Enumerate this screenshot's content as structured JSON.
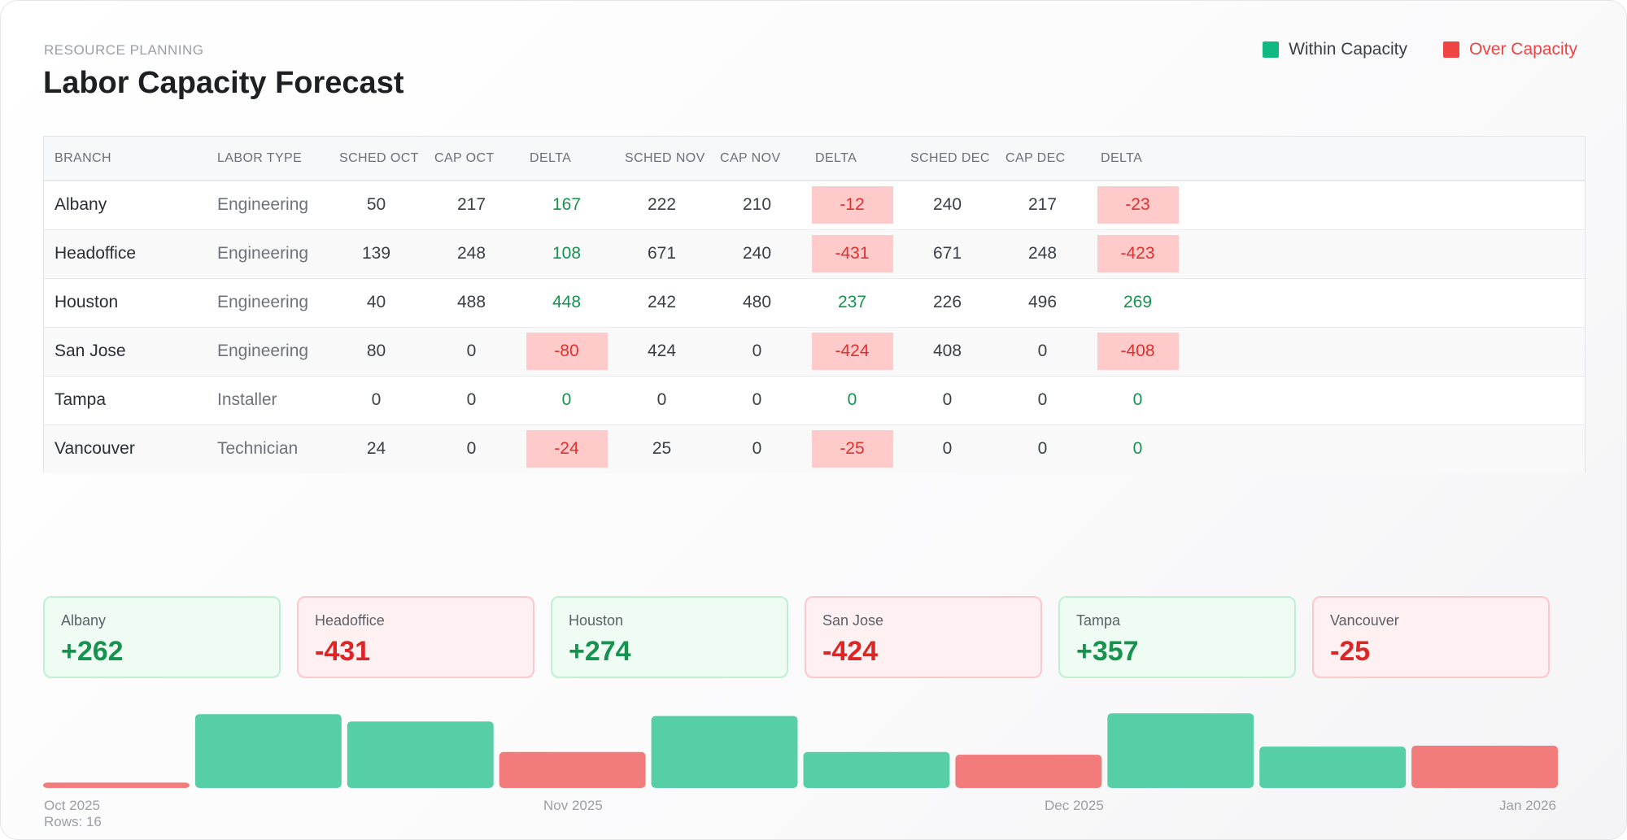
{
  "header": {
    "kicker": "RESOURCE PLANNING",
    "title": "Labor Capacity Forecast"
  },
  "legend": {
    "within": {
      "label": "Within Capacity",
      "color": "#10b981"
    },
    "over": {
      "label": "Over Capacity",
      "color": "#ef4444"
    }
  },
  "table": {
    "headers": [
      "BRANCH",
      "LABOR TYPE",
      "SCHED OCT",
      "CAP OCT",
      "DELTA",
      "SCHED NOV",
      "CAP NOV",
      "DELTA",
      "SCHED DEC",
      "CAP DEC",
      "DELTA"
    ],
    "rows": [
      [
        "Albany",
        "Engineering",
        "50",
        "217",
        "167",
        "222",
        "210",
        "-12",
        "240",
        "217",
        "-23"
      ],
      [
        "Headoffice",
        "Engineering",
        "139",
        "248",
        "108",
        "671",
        "240",
        "-431",
        "671",
        "248",
        "-423"
      ],
      [
        "Houston",
        "Engineering",
        "40",
        "488",
        "448",
        "242",
        "480",
        "237",
        "226",
        "496",
        "269"
      ],
      [
        "San Jose",
        "Engineering",
        "80",
        "0",
        "-80",
        "424",
        "0",
        "-424",
        "408",
        "0",
        "-408"
      ],
      [
        "Tampa",
        "Installer",
        "0",
        "0",
        "0",
        "0",
        "0",
        "0",
        "0",
        "0",
        "0"
      ],
      [
        "Vancouver",
        "Technician",
        "24",
        "0",
        "-24",
        "25",
        "0",
        "-25",
        "0",
        "0",
        "0"
      ]
    ]
  },
  "summary": [
    {
      "name": "Albany",
      "value": "+262",
      "status": "good"
    },
    {
      "name": "Headoffice",
      "value": "-431",
      "status": "bad"
    },
    {
      "name": "Houston",
      "value": "+274",
      "status": "good"
    },
    {
      "name": "San Jose",
      "value": "-424",
      "status": "bad"
    },
    {
      "name": "Tampa",
      "value": "+357",
      "status": "good"
    },
    {
      "name": "Vancouver",
      "value": "-25",
      "status": "bad"
    }
  ],
  "timeline": {
    "labels": [
      "Oct 2025",
      "Nov 2025",
      "Dec 2025",
      "Jan 2026"
    ],
    "rows_text": "Rows: 16"
  },
  "chart_data": {
    "type": "bar",
    "categories": [
      "",
      "",
      "",
      "",
      "",
      "",
      "",
      "",
      "",
      ""
    ],
    "series": [
      {
        "values": [
          6,
          82,
          74,
          40,
          80,
          40,
          37,
          83,
          46,
          47
        ],
        "status": [
          "over",
          "within",
          "within",
          "over",
          "within",
          "within",
          "over",
          "within",
          "within",
          "over"
        ]
      }
    ],
    "ylim": [
      0,
      85
    ],
    "colors": {
      "within": "#57cfa6",
      "over": "#f27b7b"
    }
  }
}
